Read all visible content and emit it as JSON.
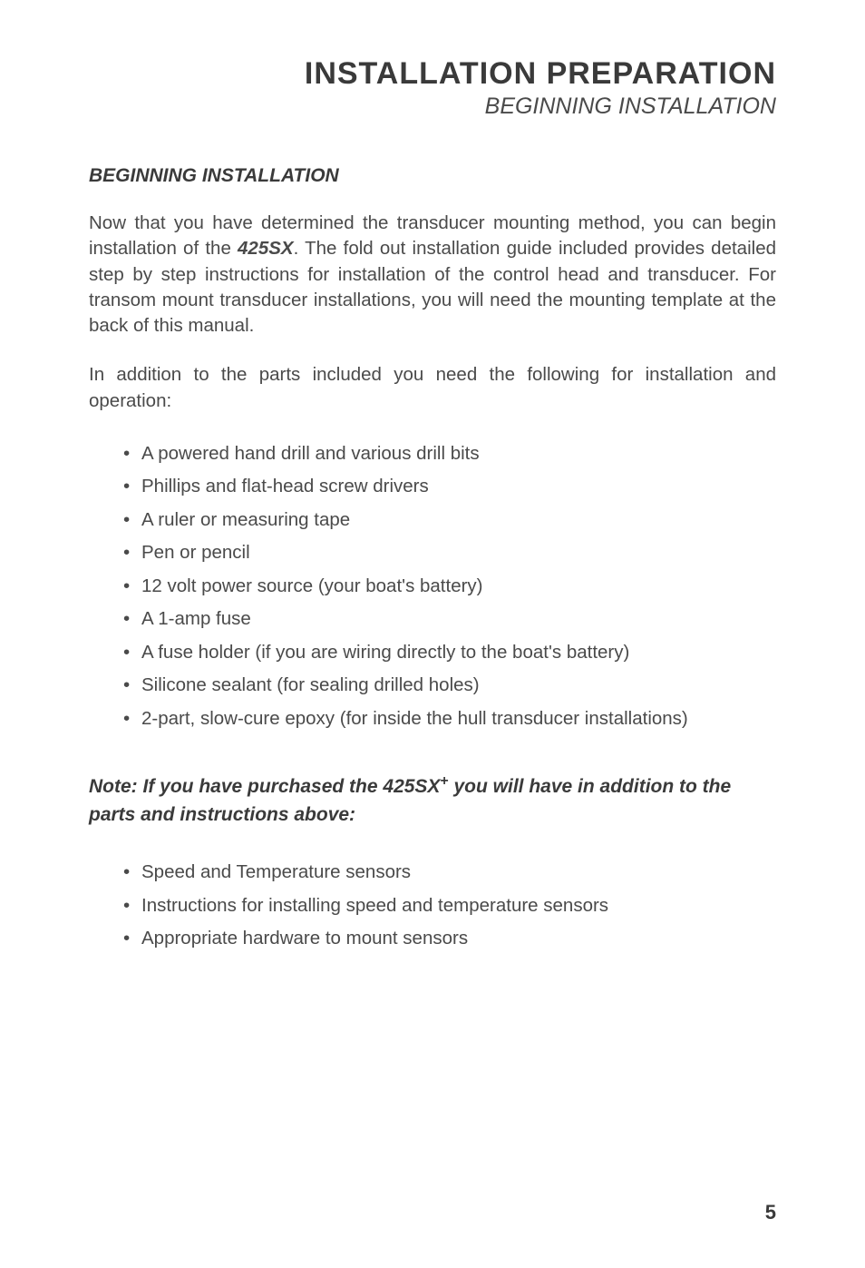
{
  "styling": {
    "page_bg": "#ffffff",
    "body_color": "#4a4a4a",
    "heading_color": "#3a3a3a",
    "main_title_fontsize": 34,
    "subtitle_fontsize": 25,
    "section_heading_fontsize": 21,
    "body_fontsize": 20.5,
    "body_lineheight": 1.38,
    "list_fontsize": 20.5,
    "list_lineheight": 1.78,
    "note_fontsize": 21,
    "note_lineheight": 1.45,
    "pagenum_fontsize": 22
  },
  "titleblock": {
    "main": "INSTALLATION PREPARATION",
    "sub": "BEGINNING INSTALLATION"
  },
  "section": {
    "heading": "BEGINNING INSTALLATION",
    "para1_pre": "Now that you have determined the transducer mounting method, you can begin installation of the ",
    "para1_model": "425SX",
    "para1_post": ". The fold out installation guide included provides detailed step by step instructions for installation of the control head and transducer. For transom mount transducer installations, you will need the mounting template at the back of this manual.",
    "para2": "In addition to the parts included you need the following for installation and operation:"
  },
  "items": {
    "i0": "A powered hand drill and various drill bits",
    "i1": "Phillips and flat-head screw drivers",
    "i2": "A ruler or measuring tape",
    "i3": "Pen or pencil",
    "i4": "12 volt power source (your boat's battery)",
    "i5": "A 1-amp fuse",
    "i6": "A fuse holder (if you are wiring directly to the boat's battery)",
    "i7": "Silicone sealant (for sealing drilled holes)",
    "i8": "2-part, slow-cure epoxy (for inside the hull transducer installations)"
  },
  "note": {
    "pre": "Note: If you have purchased the 425SX",
    "plus": "+",
    "post": " you will have in addition to the parts and instructions above:"
  },
  "note_items": {
    "n0": "Speed and Temperature sensors",
    "n1": "Instructions for installing speed and temperature sensors",
    "n2": "Appropriate hardware to mount sensors"
  },
  "page_number": "5"
}
